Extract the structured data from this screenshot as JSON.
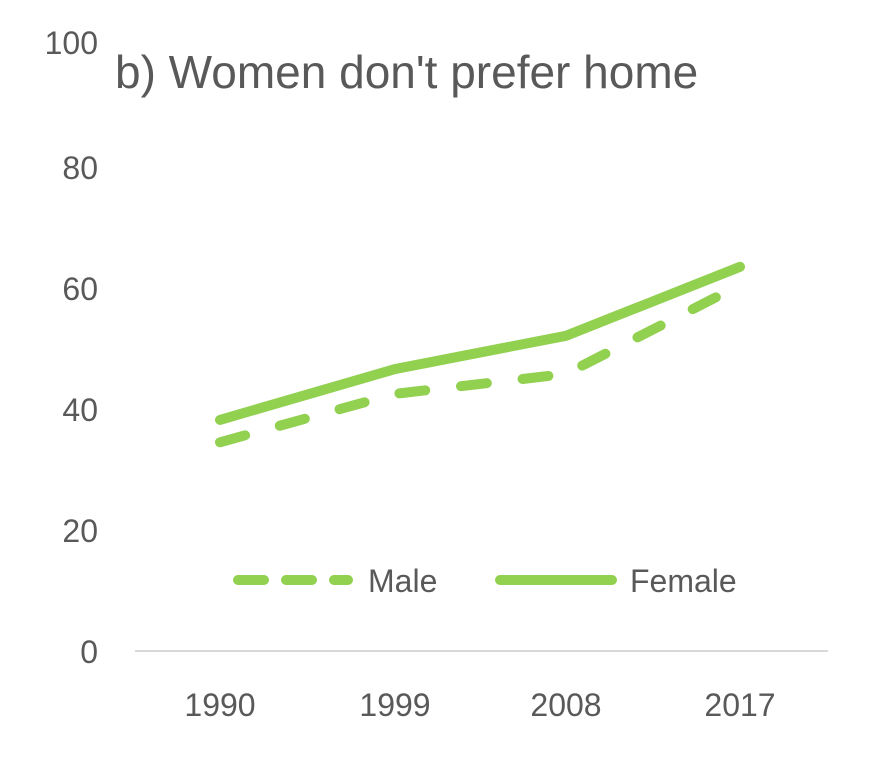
{
  "chart_data": {
    "type": "line",
    "title": "b) Women don't prefer home",
    "categories": [
      "1990",
      "1999",
      "2008",
      "2017"
    ],
    "series": [
      {
        "name": "Male",
        "values": [
          34.5,
          42.5,
          45.8,
          60.5
        ],
        "style": "dashed",
        "color": "#92D050"
      },
      {
        "name": "Female",
        "values": [
          38.2,
          46.6,
          52.1,
          63.5
        ],
        "style": "solid",
        "color": "#92D050"
      }
    ],
    "ylim": [
      0,
      100
    ],
    "yticks": [
      "0",
      "20",
      "40",
      "60",
      "80",
      "100"
    ],
    "grid": false,
    "legend": "bottom-inside"
  }
}
